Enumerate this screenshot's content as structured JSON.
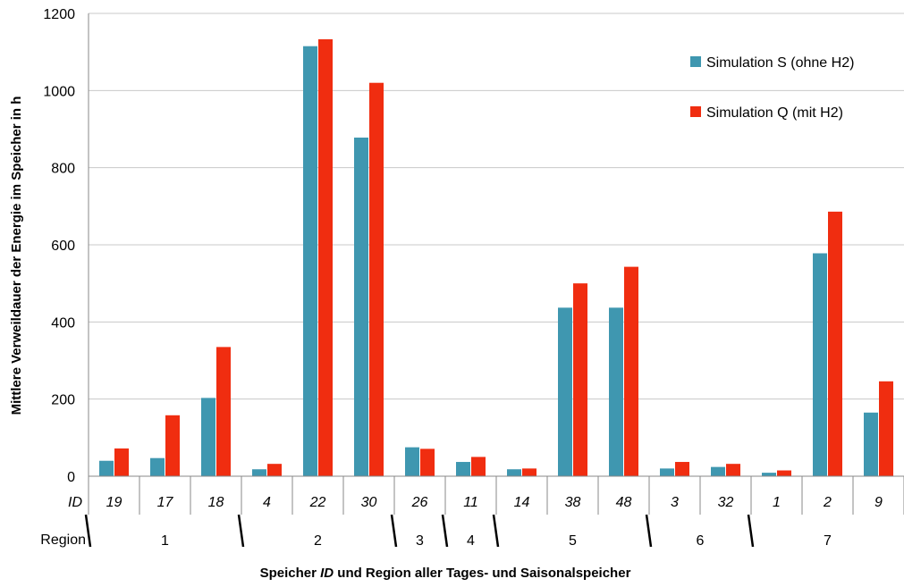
{
  "chart_data": {
    "type": "bar",
    "ylabel": "Mittlere Verweildauer der Energie im Speicher in h",
    "xlabel_parts": [
      "Speicher ",
      "ID",
      " und Region aller Tages- und Saisonalspeicher"
    ],
    "row_labels": {
      "id": "ID",
      "region": "Region"
    },
    "ylim": [
      0,
      1200
    ],
    "yticks": [
      "0",
      "200",
      "400",
      "600",
      "800",
      "1000",
      "1200"
    ],
    "categories": [
      "19",
      "17",
      "18",
      "4",
      "22",
      "30",
      "26",
      "11",
      "14",
      "38",
      "48",
      "3",
      "32",
      "1",
      "2",
      "9"
    ],
    "regions": [
      {
        "name": "1",
        "start": 0,
        "end": 2
      },
      {
        "name": "2",
        "start": 3,
        "end": 5
      },
      {
        "name": "3",
        "start": 6,
        "end": 6
      },
      {
        "name": "4",
        "start": 7,
        "end": 7
      },
      {
        "name": "5",
        "start": 8,
        "end": 10
      },
      {
        "name": "6",
        "start": 11,
        "end": 12
      },
      {
        "name": "7",
        "start": 13,
        "end": 15
      }
    ],
    "series": [
      {
        "name": "Simulation S (ohne H2)",
        "color": "#3f97b0",
        "values": [
          40,
          47,
          203,
          18,
          1115,
          878,
          75,
          37,
          18,
          437,
          437,
          20,
          24,
          9,
          578,
          165
        ]
      },
      {
        "name": "Simulation Q (mit H2)",
        "color": "#f02d10",
        "values": [
          72,
          158,
          335,
          32,
          1133,
          1020,
          71,
          50,
          20,
          500,
          543,
          37,
          32,
          15,
          686,
          246
        ]
      }
    ],
    "legend_position": "top-right",
    "grid": true
  }
}
